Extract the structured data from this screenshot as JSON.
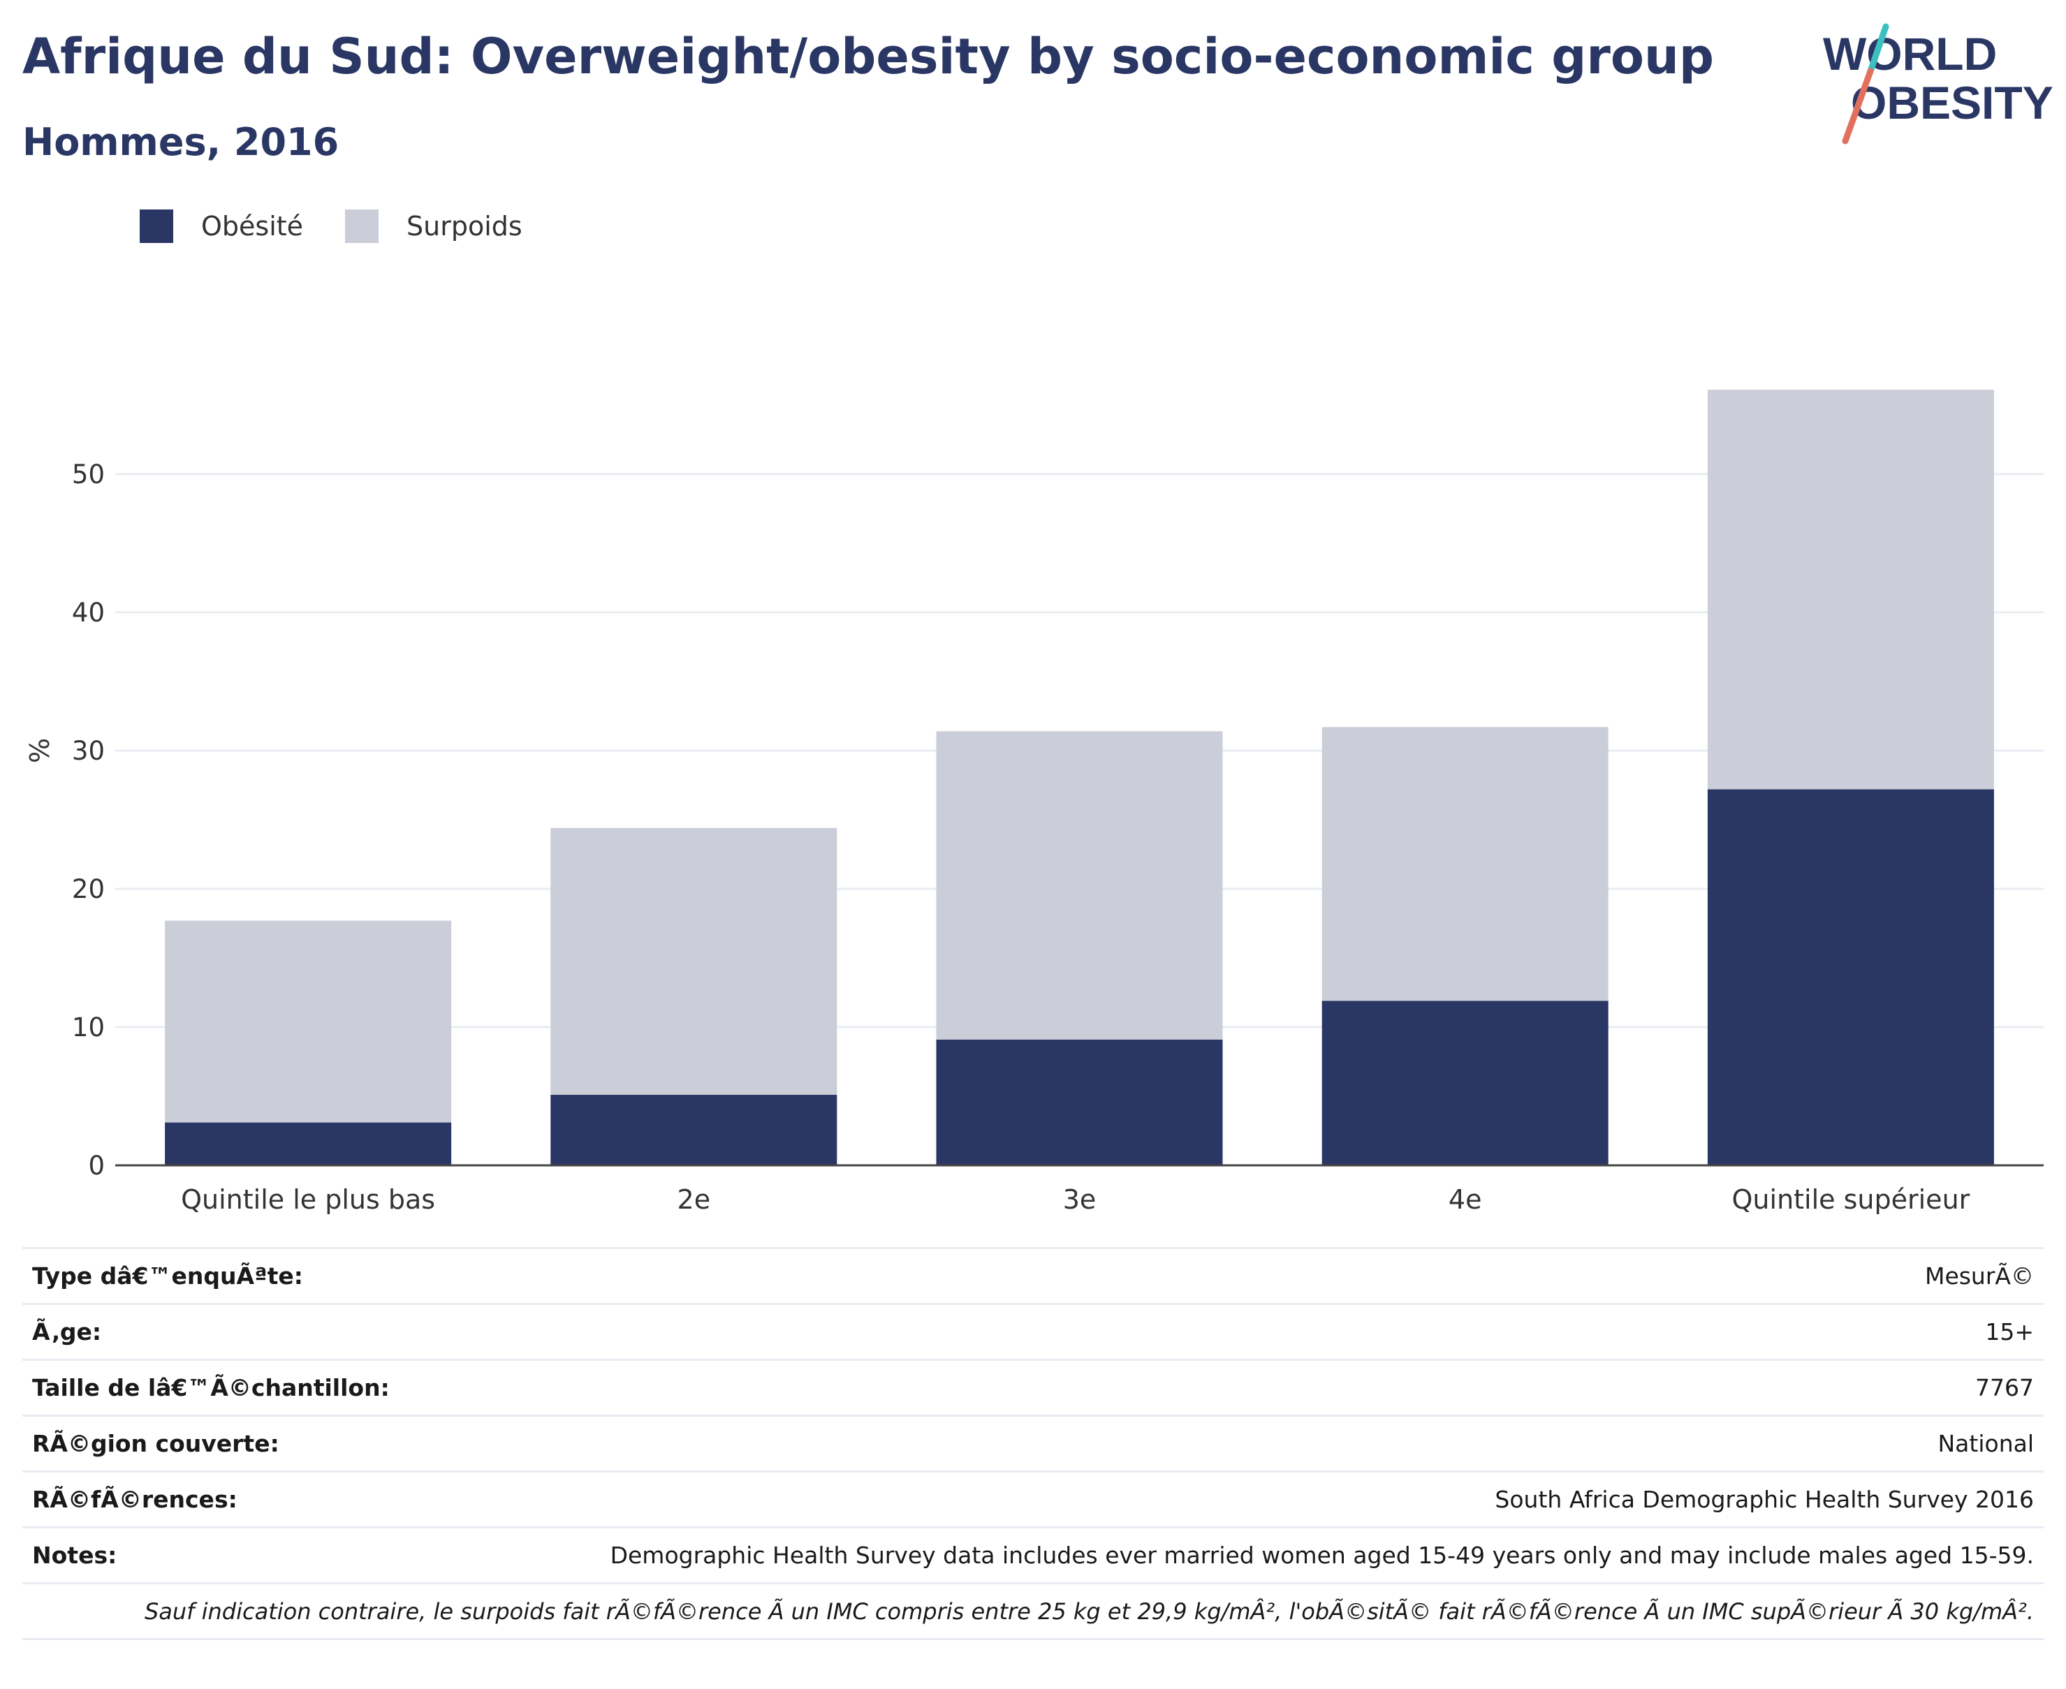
{
  "header": {
    "title": "Afrique du Sud: Overweight/obesity by socio-economic group",
    "subtitle": "Hommes, 2016"
  },
  "logo": {
    "line1": "WORLD",
    "line2": "OBESITY",
    "icon": "world-obesity-logo"
  },
  "legend": [
    {
      "label": "Obésité",
      "color": "#2a3664"
    },
    {
      "label": "Surpoids",
      "color": "#cbcdd8"
    }
  ],
  "chart_data": {
    "type": "bar",
    "stacked": true,
    "categories": [
      "Quintile le plus bas",
      "2e",
      "3e",
      "4e",
      "Quintile supérieur"
    ],
    "series": [
      {
        "name": "Obésité",
        "color": "#2a3664",
        "values": [
          3.1,
          5.1,
          9.1,
          11.9,
          27.2
        ]
      },
      {
        "name": "Surpoids",
        "color": "#cbcdd8",
        "values": [
          14.6,
          19.3,
          22.3,
          19.8,
          28.9
        ]
      }
    ],
    "ylabel": "%",
    "yticks": [
      0,
      10,
      20,
      30,
      40,
      50
    ],
    "ylim": [
      0,
      59
    ],
    "grid": true
  },
  "info": [
    {
      "key": "Type dâ€™enquÃªte:",
      "value": "MesurÃ©"
    },
    {
      "key": "Ã‚ge:",
      "value": "15+"
    },
    {
      "key": "Taille de lâ€™Ã©chantillon:",
      "value": "7767"
    },
    {
      "key": "RÃ©gion couverte:",
      "value": "National"
    },
    {
      "key": "RÃ©fÃ©rences:",
      "value": "South Africa Demographic Health Survey 2016"
    },
    {
      "key": "Notes:",
      "value": "Demographic Health Survey data includes ever married women aged 15-49 years only and may include males aged 15-59."
    }
  ],
  "footnote": "Sauf indication contraire, le surpoids fait rÃ©fÃ©rence Ã  un IMC compris entre 25 kg et 29,9 kg/mÂ², l'obÃ©sitÃ© fait rÃ©fÃ©rence Ã  un IMC supÃ©rieur Ã  30 kg/mÂ²."
}
